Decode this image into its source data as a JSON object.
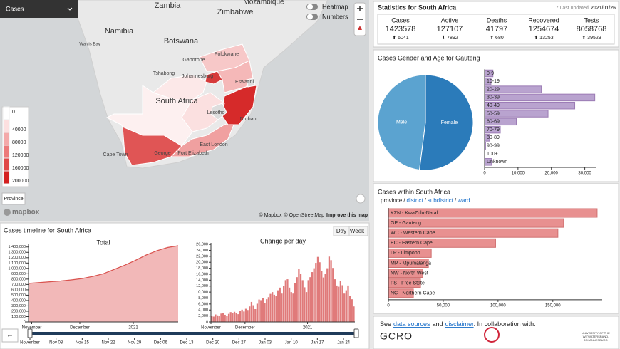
{
  "map": {
    "dropdown": "Cases",
    "toggles": [
      "Heatmap",
      "Numbers"
    ],
    "places": [
      "Zambia",
      "Zimbabwe",
      "Mozambique",
      "Namibia",
      "Botswana",
      "Walvis Bay",
      "Gaborone",
      "Polokwane",
      "Tshabong",
      "Johannesburg",
      "Eswatini",
      "South Africa",
      "Lesotho",
      "Durban",
      "Cape Town",
      "George",
      "Port Elizabeth",
      "East London"
    ],
    "legend": [
      0,
      40000,
      80000,
      120000,
      160000,
      200000
    ],
    "legend_colors": [
      "#ffffff",
      "#fde0e0",
      "#f4a9a9",
      "#ec7a7a",
      "#e04848",
      "#d42020"
    ],
    "button": "Province",
    "logo": "mapbox",
    "attribution": [
      "© Mapbox",
      "© OpenStreetMap",
      "Improve this map"
    ]
  },
  "stats": {
    "title": "Statistics for South Africa",
    "updated_label": "* Last updated",
    "updated": "2021/01/26",
    "items": [
      {
        "label": "Cases",
        "value": 1423578,
        "change": "⬆ 6041"
      },
      {
        "label": "Active",
        "value": 127107,
        "change": "⬇ 7892"
      },
      {
        "label": "Deaths",
        "value": 41797,
        "change": "⬆ 680"
      },
      {
        "label": "Recovered",
        "value": 1254674,
        "change": "⬆ 13253"
      },
      {
        "label": "Tests",
        "value": 8058768,
        "change": "⬆ 39529"
      }
    ]
  },
  "gender": {
    "title": "Cases Gender and Age for Gauteng",
    "pie": {
      "type": "pie",
      "categories": [
        "Male",
        "Female"
      ],
      "values": [
        48,
        52
      ],
      "colors": [
        "#5ba3d0",
        "#2b7bba"
      ]
    },
    "age": {
      "type": "bar",
      "categories": [
        "0-9",
        "10-19",
        "20-29",
        "30-39",
        "40-49",
        "50-59",
        "60-69",
        "70-79",
        "80-89",
        "90-99",
        "100+",
        "Unknown"
      ],
      "values": [
        2500,
        1900,
        17000,
        33000,
        27000,
        19000,
        9500,
        4700,
        1500,
        300,
        20,
        2100
      ],
      "xlim": [
        0,
        33500
      ],
      "xticks": [
        0,
        {
          "value": 10000,
          "label": "10,000"
        },
        {
          "value": 20000,
          "label": "20,000"
        },
        {
          "value": 30000,
          "label": "30,000"
        }
      ],
      "color": "#b9a3cf"
    }
  },
  "provinces": {
    "title": "Cases within South Africa",
    "levels": [
      "province",
      "district",
      "subdistrict",
      "ward"
    ],
    "separator": "/",
    "type": "bar",
    "categories": [
      "KZN - KwaZulu-Natal",
      "GP - Gauteng",
      "WC - Western Cape",
      "EC - Eastern Cape",
      "LP - Limpopo",
      "MP - Mpumalanga",
      "NW - North West",
      "FS - Free State",
      "NC - Northern Cape"
    ],
    "values": [
      190400,
      159800,
      154600,
      97800,
      39100,
      36500,
      31300,
      29300,
      22800
    ],
    "xlim": [
      0,
      195000
    ],
    "xticks": [
      0,
      {
        "value": 50000,
        "label": "50,000"
      },
      {
        "value": 100000,
        "label": "100,000"
      },
      {
        "value": 150000,
        "label": "150,000"
      }
    ],
    "color": "#e89090"
  },
  "timeline": {
    "title": "Cases timeline for South Africa",
    "buttons": [
      "Day",
      "Week"
    ],
    "back": "←",
    "total": {
      "type": "area",
      "title": "Total",
      "values": [
        720000,
        735000,
        750000,
        765000,
        785000,
        810000,
        850000,
        900000,
        980000,
        1060000,
        1150000,
        1250000,
        1330000,
        1390000,
        1423578
      ],
      "xlim": [
        0,
        14
      ],
      "xticks": [
        {
          "value": 0.3,
          "label": "November"
        },
        {
          "value": 4.8,
          "label": "December"
        },
        {
          "value": 9.8,
          "label": "2021"
        }
      ],
      "ylim": [
        0,
        1450000
      ],
      "yticks": [
        0,
        {
          "value": 100000,
          "label": "100,000"
        },
        {
          "value": 200000,
          "label": "200,000"
        },
        {
          "value": 300000,
          "label": "300,000"
        },
        {
          "value": 400000,
          "label": "400,000"
        },
        {
          "value": 500000,
          "label": "500,000"
        },
        {
          "value": 600000,
          "label": "600,000"
        },
        {
          "value": 700000,
          "label": "700,000"
        },
        {
          "value": 800000,
          "label": "800,000"
        },
        {
          "value": 900000,
          "label": "900,000"
        },
        {
          "value": 1000000,
          "label": "1,000,000"
        },
        {
          "value": 1100000,
          "label": "1,100,000"
        },
        {
          "value": 1200000,
          "label": "1,200,000"
        },
        {
          "value": 1300000,
          "label": "1,300,000"
        },
        {
          "value": 1400000,
          "label": "1,400,000"
        }
      ],
      "color": "#d9534f",
      "fill": "#f2b8b8"
    },
    "daily": {
      "type": "bar",
      "title": "Change per day",
      "values": [
        2000,
        1800,
        2500,
        2200,
        1900,
        2800,
        3100,
        2400,
        2000,
        2700,
        3300,
        2900,
        3400,
        3000,
        2600,
        3800,
        4100,
        3500,
        4400,
        4000,
        5200,
        6700,
        5600,
        4300,
        6100,
        7500,
        7300,
        8100,
        6400,
        7600,
        8300,
        9400,
        10000,
        9100,
        8600,
        10600,
        11500,
        9500,
        12000,
        14000,
        14300,
        11500,
        10000,
        9500,
        12900,
        15000,
        17700,
        16000,
        14000,
        11600,
        10000,
        14000,
        15000,
        16700,
        18000,
        19800,
        21800,
        20000,
        17000,
        14900,
        16100,
        18000,
        21900,
        20700,
        18100,
        14300,
        12200,
        11800,
        13800,
        12300,
        9500,
        10600,
        12200,
        8600,
        7600,
        5200
      ],
      "xlim": [
        0,
        76
      ],
      "xticks": [
        {
          "value": 0,
          "label": "November"
        },
        {
          "value": 18,
          "label": "December"
        },
        {
          "value": 51,
          "label": "2021"
        }
      ],
      "ylim": [
        0,
        26500
      ],
      "yticks": [
        0,
        {
          "value": 2000,
          "label": "2,000"
        },
        {
          "value": 4000,
          "label": "4,000"
        },
        {
          "value": 6000,
          "label": "6,000"
        },
        {
          "value": 8000,
          "label": "8,000"
        },
        {
          "value": 10000,
          "label": "10,000"
        },
        {
          "value": 12000,
          "label": "12,000"
        },
        {
          "value": 14000,
          "label": "14,000"
        },
        {
          "value": 16000,
          "label": "16,000"
        },
        {
          "value": 18000,
          "label": "18,000"
        },
        {
          "value": 20000,
          "label": "20,000"
        },
        {
          "value": 22000,
          "label": "22,000"
        },
        {
          "value": 24000,
          "label": "24,000"
        },
        {
          "value": 26000,
          "label": "26,000"
        }
      ],
      "color": "#e07a7a"
    },
    "brush_labels": [
      "November",
      "Nov 08",
      "Nov 15",
      "Nov 22",
      "Nov 29",
      "Dec 06",
      "Dec 13",
      "Dec 20",
      "Dec 27",
      "Jan 03",
      "Jan 10",
      "Jan 17",
      "Jan 24"
    ]
  },
  "footer": {
    "text": [
      "See",
      "data sources",
      "and",
      "disclaimer",
      ". In collaboration with:"
    ],
    "partners": [
      "GCRO",
      "UNIVERSITY OF THE",
      "WITWATERSRAND,",
      "JOHANNESBURG"
    ]
  }
}
